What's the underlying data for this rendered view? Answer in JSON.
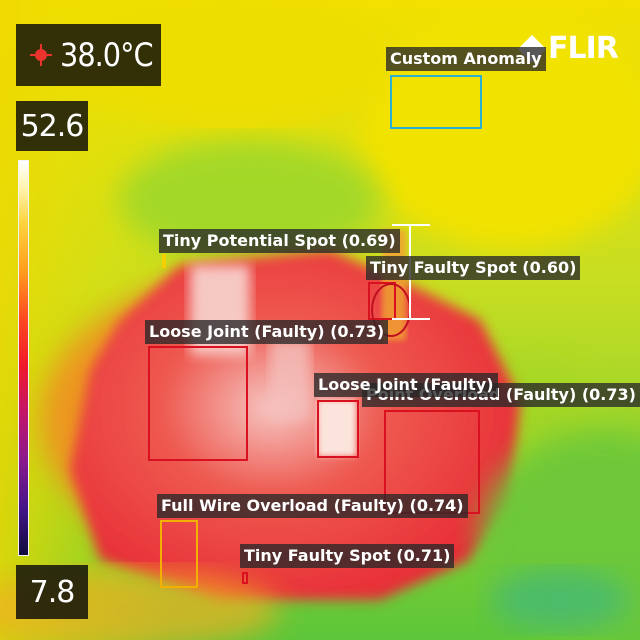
{
  "spot_meter": {
    "icon": "crosshair-spot-icon",
    "temperature": "38.0°C",
    "color": "#e8342c"
  },
  "temperature_scale": {
    "max": "52.6",
    "min": "7.8",
    "palette": "iron / rainbow"
  },
  "brand": {
    "logo_text": "FLIR",
    "icon": "flir-diamond-icon"
  },
  "detections": [
    {
      "label": "Custom Anomaly",
      "color": "#2ab0d0"
    },
    {
      "label": "Tiny Potential Spot (0.69)",
      "color": "#f4d000"
    },
    {
      "label": "Tiny Faulty Spot (0.60)",
      "color": "#d81020"
    },
    {
      "label": "Loose Joint (Faulty) (0.73)",
      "color": "#d81020"
    },
    {
      "label": "Loose Joint (Faulty)",
      "color": "#d81020"
    },
    {
      "label": "Point Overload (Faulty) (0.73)",
      "color": "#d81020"
    },
    {
      "label": "Full Wire Overload (Faulty) (0.74)",
      "color": "#f4b000"
    },
    {
      "label": "Tiny Faulty Spot (0.71)",
      "color": "#d81020"
    }
  ],
  "scene": {
    "palette_colors": [
      "#7cd22c",
      "#e8e000",
      "#f4c400",
      "#f48a20",
      "#ea3a32",
      "#f2b4b0",
      "#fdf2e8",
      "#20b4a0"
    ]
  }
}
